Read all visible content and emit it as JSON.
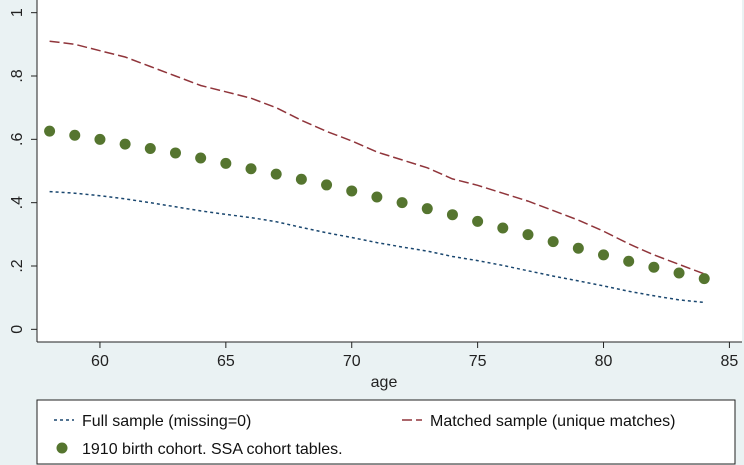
{
  "chart_data": {
    "type": "line",
    "xlabel": "age",
    "ylabel": "",
    "xlim": [
      57.5,
      85.5
    ],
    "ylim": [
      -0.04,
      1.04
    ],
    "xticks": [
      "60",
      "65",
      "70",
      "75",
      "80",
      "85"
    ],
    "yticks": [
      "0",
      ".2",
      ".4",
      ".6",
      ".8",
      "1"
    ],
    "grid": false,
    "legend_position": "bottom",
    "colors": {
      "background": "#eaf2f3",
      "plot_area": "#ffffff",
      "full_sample": "#1a476f",
      "matched_sample": "#90353b",
      "ssa_cohort": "#55752f"
    },
    "series": [
      {
        "name": "Full sample (missing=0)",
        "style": "dash",
        "x": [
          58,
          59,
          60,
          61,
          62,
          63,
          64,
          65,
          66,
          67,
          68,
          69,
          70,
          71,
          72,
          73,
          74,
          75,
          76,
          77,
          78,
          79,
          80,
          81,
          82,
          83,
          84
        ],
        "y": [
          0.435,
          0.43,
          0.422,
          0.412,
          0.4,
          0.387,
          0.374,
          0.363,
          0.353,
          0.34,
          0.322,
          0.305,
          0.29,
          0.274,
          0.26,
          0.247,
          0.23,
          0.217,
          0.202,
          0.185,
          0.168,
          0.153,
          0.137,
          0.12,
          0.106,
          0.093,
          0.085
        ]
      },
      {
        "name": "Matched sample (unique matches)",
        "style": "longdash",
        "x": [
          58,
          59,
          60,
          61,
          62,
          63,
          64,
          65,
          66,
          67,
          68,
          69,
          70,
          71,
          72,
          73,
          74,
          75,
          76,
          77,
          78,
          79,
          80,
          81,
          82,
          83,
          84
        ],
        "y": [
          0.91,
          0.9,
          0.88,
          0.86,
          0.83,
          0.8,
          0.77,
          0.75,
          0.73,
          0.7,
          0.66,
          0.625,
          0.595,
          0.56,
          0.535,
          0.51,
          0.475,
          0.455,
          0.43,
          0.405,
          0.375,
          0.345,
          0.31,
          0.27,
          0.235,
          0.205,
          0.175
        ]
      },
      {
        "name": "1910 birth cohort. SSA cohort tables.",
        "style": "markers",
        "x": [
          58,
          59,
          60,
          61,
          62,
          63,
          64,
          65,
          66,
          67,
          68,
          69,
          70,
          71,
          72,
          73,
          74,
          75,
          76,
          77,
          78,
          79,
          80,
          81,
          82,
          83,
          84
        ],
        "y": [
          0.626,
          0.613,
          0.6,
          0.585,
          0.571,
          0.557,
          0.541,
          0.524,
          0.507,
          0.49,
          0.474,
          0.456,
          0.437,
          0.418,
          0.4,
          0.381,
          0.362,
          0.341,
          0.32,
          0.299,
          0.277,
          0.256,
          0.235,
          0.215,
          0.196,
          0.178,
          0.16
        ]
      }
    ]
  }
}
